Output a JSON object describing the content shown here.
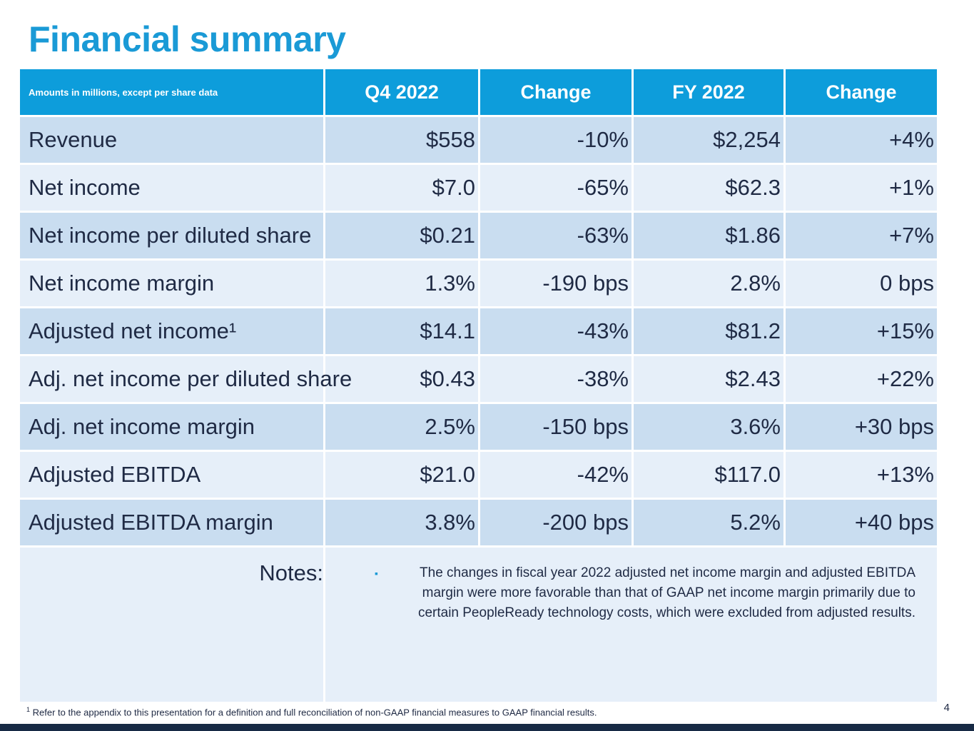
{
  "title": "Financial summary",
  "table": {
    "header": {
      "label": "Amounts in millions, except per share data",
      "col1": "Q4 2022",
      "col2": "Change",
      "col3": "FY 2022",
      "col4": "Change"
    },
    "rows": [
      {
        "label": "Revenue",
        "q4": "$558",
        "q4_change": "-10%",
        "fy": "$2,254",
        "fy_change": "+4%"
      },
      {
        "label": "Net income",
        "q4": "$7.0",
        "q4_change": "-65%",
        "fy": "$62.3",
        "fy_change": "+1%"
      },
      {
        "label": "Net income per diluted share",
        "q4": "$0.21",
        "q4_change": "-63%",
        "fy": "$1.86",
        "fy_change": "+7%"
      },
      {
        "label": "Net income margin",
        "q4": "1.3%",
        "q4_change": "-190 bps",
        "fy": "2.8%",
        "fy_change": "0 bps"
      },
      {
        "label": "Adjusted net income¹",
        "q4": "$14.1",
        "q4_change": "-43%",
        "fy": "$81.2",
        "fy_change": "+15%"
      },
      {
        "label": "Adj. net income per diluted share",
        "q4": "$0.43",
        "q4_change": "-38%",
        "fy": "$2.43",
        "fy_change": "+22%"
      },
      {
        "label": "Adj. net income margin",
        "q4": "2.5%",
        "q4_change": "-150 bps",
        "fy": "3.6%",
        "fy_change": "+30 bps"
      },
      {
        "label": "Adjusted EBITDA",
        "q4": "$21.0",
        "q4_change": "-42%",
        "fy": "$117.0",
        "fy_change": "+13%"
      },
      {
        "label": "Adjusted EBITDA margin",
        "q4": "3.8%",
        "q4_change": "-200 bps",
        "fy": "5.2%",
        "fy_change": "+40 bps"
      }
    ],
    "notes": {
      "label": "Notes:",
      "bullet": "▪",
      "text": "The changes in fiscal year 2022 adjusted net income margin and adjusted EBITDA margin were more favorable than that of GAAP net income margin primarily due to certain PeopleReady technology costs, which were excluded from adjusted results."
    }
  },
  "footnote": {
    "marker": "1",
    "text": "Refer to the appendix to this presentation for a definition and full reconciliation of non-GAAP financial measures to GAAP financial results."
  },
  "page_number": "4",
  "colors": {
    "accent": "#1a9ad6",
    "header_bg": "#0d9ddb",
    "row_dark": "#c9ddf0",
    "row_light": "#e6eff9",
    "bottom_bar": "#172a45"
  }
}
